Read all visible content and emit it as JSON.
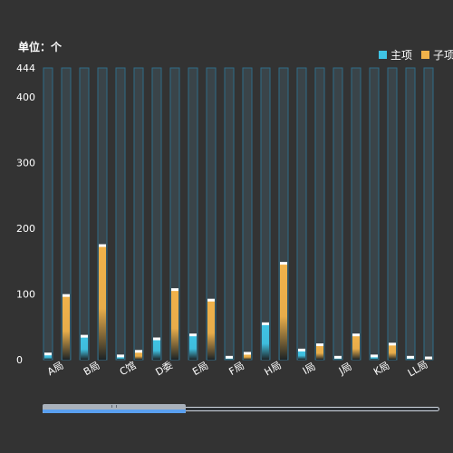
{
  "unit_label": "单位：个",
  "colors": {
    "main": "#3fc3e4",
    "sub": "#f0b24a",
    "frame": "#2f6c88",
    "frame_fill": "#3a4449",
    "cap": "#ffffff",
    "axis_text": "#ffffff"
  },
  "legend": [
    {
      "label": "主项",
      "color": "#3fc3e4"
    },
    {
      "label": "子项",
      "color": "#f0b24a"
    }
  ],
  "chart_data": {
    "type": "bar",
    "categories": [
      "A局",
      "B局",
      "C馆",
      "D委",
      "E局",
      "F局",
      "H局",
      "I局",
      "J局",
      "K局",
      "LL局"
    ],
    "series": [
      {
        "name": "主项",
        "values": [
          8,
          35,
          5,
          31,
          37,
          3,
          54,
          14,
          3,
          5,
          3
        ]
      },
      {
        "name": "子项",
        "values": [
          97,
          173,
          12,
          106,
          90,
          9,
          146,
          22,
          37,
          23,
          2
        ]
      }
    ],
    "ylim": [
      0,
      444
    ],
    "yticks": [
      0,
      100,
      200,
      300,
      400,
      444
    ],
    "ytick_labels": [
      "0",
      "100",
      "200",
      "300",
      "400",
      "444"
    ],
    "grid": false,
    "legend_position": "top-right",
    "dataZoom": {
      "start_percent": 0,
      "end_percent": 36
    }
  }
}
